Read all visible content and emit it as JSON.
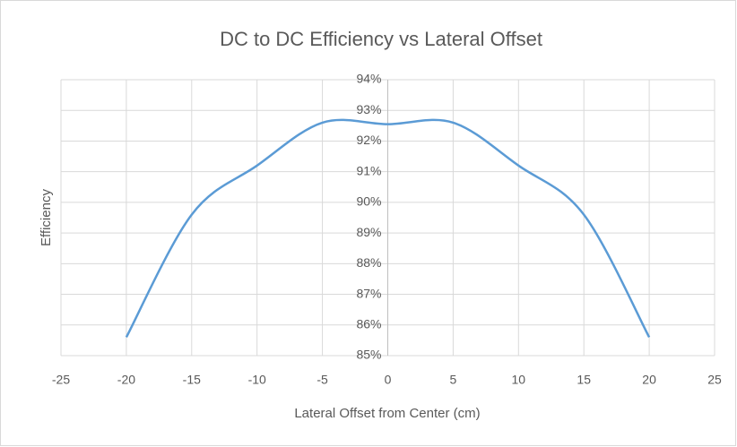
{
  "chart_data": {
    "type": "scatter",
    "title": "DC to DC Efficiency vs Lateral Offset",
    "x_label": "Lateral Offset from Center (cm)",
    "y_label": "Efficiency",
    "smooth": true,
    "grid": true,
    "series": [
      {
        "name": "Efficiency",
        "color": "#5b9bd5",
        "x": [
          -20,
          -15,
          -10,
          -5,
          0,
          5,
          10,
          15,
          20
        ],
        "values": [
          85.6,
          89.6,
          91.2,
          92.6,
          92.55,
          92.6,
          91.2,
          89.6,
          85.6
        ]
      }
    ],
    "xlim": [
      -25,
      25
    ],
    "xticks": [
      -25,
      -20,
      -15,
      -10,
      -5,
      0,
      5,
      10,
      15,
      20,
      25
    ],
    "ylim": [
      85,
      94
    ],
    "yticks": [
      {
        "value": 85,
        "label": "85%"
      },
      {
        "value": 86,
        "label": "86%"
      },
      {
        "value": 87,
        "label": "87%"
      },
      {
        "value": 88,
        "label": "88%"
      },
      {
        "value": 89,
        "label": "89%"
      },
      {
        "value": 90,
        "label": "90%"
      },
      {
        "value": 91,
        "label": "91%"
      },
      {
        "value": 92,
        "label": "92%"
      },
      {
        "value": 93,
        "label": "93%"
      },
      {
        "value": 94,
        "label": "94%"
      }
    ]
  }
}
